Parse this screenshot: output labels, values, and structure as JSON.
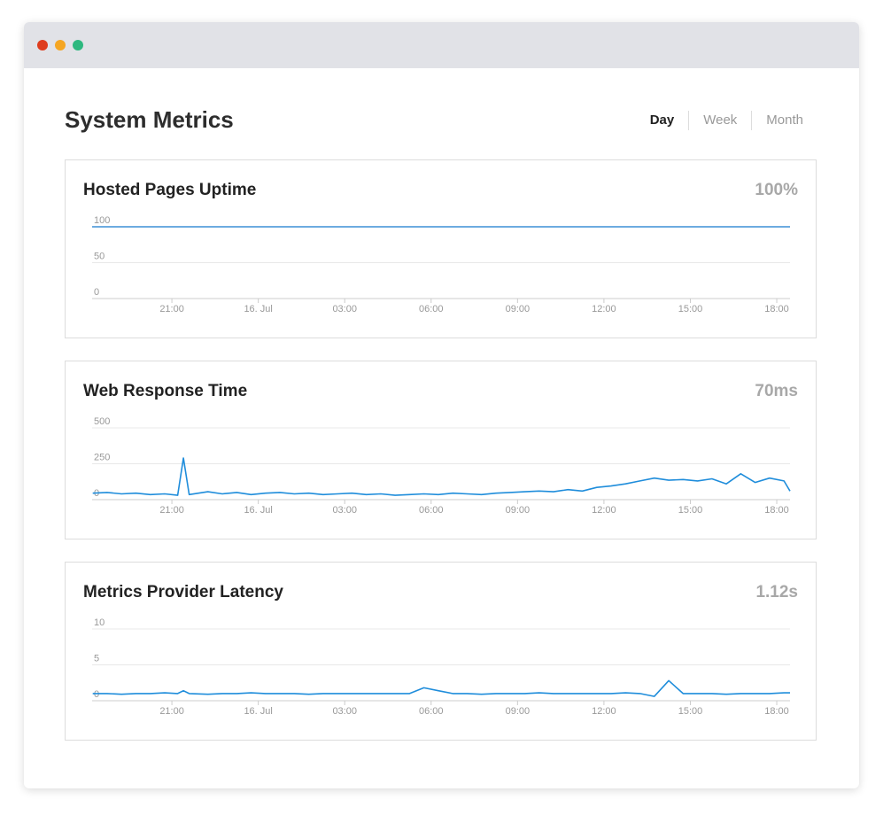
{
  "header": {
    "title": "System Metrics",
    "tabs": [
      "Day",
      "Week",
      "Month"
    ],
    "active_tab": 0
  },
  "panels": [
    {
      "title": "Hosted Pages Uptime",
      "summary": "100%",
      "chart_data": {
        "type": "line",
        "color": "#3d8fd6",
        "x": [
          -5.77,
          18.46
        ],
        "values": [
          100,
          100
        ],
        "xlim": [
          -5.77,
          18.46
        ],
        "ylim": [
          0,
          100
        ],
        "yticks": [
          0,
          50,
          100
        ],
        "xticks": [
          {
            "value": -3,
            "label": "21:00"
          },
          {
            "value": 0,
            "label": "16. Jul"
          },
          {
            "value": 3,
            "label": "03:00"
          },
          {
            "value": 6,
            "label": "06:00"
          },
          {
            "value": 9,
            "label": "09:00"
          },
          {
            "value": 12,
            "label": "12:00"
          },
          {
            "value": 15,
            "label": "15:00"
          },
          {
            "value": 18,
            "label": "18:00"
          }
        ],
        "grid": true
      }
    },
    {
      "title": "Web Response Time",
      "summary": "70ms",
      "chart_data": {
        "type": "line",
        "color": "#1f8ddb",
        "x": [
          -5.75,
          -5.25,
          -4.75,
          -4.25,
          -3.75,
          -3.25,
          -2.8,
          -2.6,
          -2.4,
          -1.75,
          -1.25,
          -0.75,
          -0.25,
          0.25,
          0.75,
          1.25,
          1.75,
          2.25,
          2.75,
          3.25,
          3.75,
          4.25,
          4.75,
          5.25,
          5.75,
          6.25,
          6.75,
          7.25,
          7.75,
          8.25,
          8.75,
          9.25,
          9.75,
          10.25,
          10.75,
          11.25,
          11.75,
          12.25,
          12.75,
          13.25,
          13.75,
          14.25,
          14.75,
          15.25,
          15.75,
          16.25,
          16.75,
          17.25,
          17.75,
          18.25,
          18.46
        ],
        "values": [
          45,
          50,
          40,
          45,
          35,
          40,
          30,
          290,
          35,
          55,
          40,
          50,
          35,
          45,
          50,
          40,
          45,
          35,
          40,
          45,
          35,
          40,
          30,
          35,
          40,
          35,
          45,
          40,
          35,
          45,
          50,
          55,
          60,
          55,
          70,
          60,
          85,
          95,
          110,
          130,
          150,
          135,
          140,
          130,
          145,
          110,
          180,
          120,
          150,
          130,
          60
        ],
        "xlim": [
          -5.77,
          18.46
        ],
        "ylim": [
          0,
          500
        ],
        "yticks": [
          0,
          250,
          500
        ],
        "xticks": [
          {
            "value": -3,
            "label": "21:00"
          },
          {
            "value": 0,
            "label": "16. Jul"
          },
          {
            "value": 3,
            "label": "03:00"
          },
          {
            "value": 6,
            "label": "06:00"
          },
          {
            "value": 9,
            "label": "09:00"
          },
          {
            "value": 12,
            "label": "12:00"
          },
          {
            "value": 15,
            "label": "15:00"
          },
          {
            "value": 18,
            "label": "18:00"
          }
        ],
        "grid": true
      }
    },
    {
      "title": "Metrics Provider Latency",
      "summary": "1.12s",
      "chart_data": {
        "type": "line",
        "color": "#1f8ddb",
        "x": [
          -5.75,
          -5.25,
          -4.75,
          -4.25,
          -3.75,
          -3.25,
          -2.8,
          -2.6,
          -2.4,
          -1.75,
          -1.25,
          -0.75,
          -0.25,
          0.25,
          0.75,
          1.25,
          1.75,
          2.25,
          2.75,
          3.25,
          3.75,
          4.25,
          4.75,
          5.25,
          5.75,
          6.25,
          6.75,
          7.25,
          7.75,
          8.25,
          8.75,
          9.25,
          9.75,
          10.25,
          10.75,
          11.25,
          11.75,
          12.25,
          12.75,
          13.25,
          13.75,
          14.25,
          14.75,
          15.25,
          15.75,
          16.25,
          16.75,
          17.25,
          17.75,
          18.25,
          18.46
        ],
        "values": [
          1,
          1,
          0.9,
          1,
          1,
          1.1,
          1,
          1.4,
          1,
          0.9,
          1,
          1,
          1.1,
          1,
          1,
          1,
          0.9,
          1,
          1,
          1,
          1,
          1,
          1,
          1,
          1.8,
          1.4,
          1,
          1,
          0.9,
          1,
          1,
          1,
          1.1,
          1,
          1,
          1,
          1,
          1,
          1.1,
          1,
          0.6,
          2.8,
          1,
          1,
          1,
          0.9,
          1,
          1,
          1,
          1.1,
          1.1
        ],
        "xlim": [
          -5.77,
          18.46
        ],
        "ylim": [
          0,
          10
        ],
        "yticks": [
          0,
          5,
          10
        ],
        "xticks": [
          {
            "value": -3,
            "label": "21:00"
          },
          {
            "value": 0,
            "label": "16. Jul"
          },
          {
            "value": 3,
            "label": "03:00"
          },
          {
            "value": 6,
            "label": "06:00"
          },
          {
            "value": 9,
            "label": "09:00"
          },
          {
            "value": 12,
            "label": "12:00"
          },
          {
            "value": 15,
            "label": "15:00"
          },
          {
            "value": 18,
            "label": "18:00"
          }
        ],
        "grid": true
      }
    }
  ]
}
